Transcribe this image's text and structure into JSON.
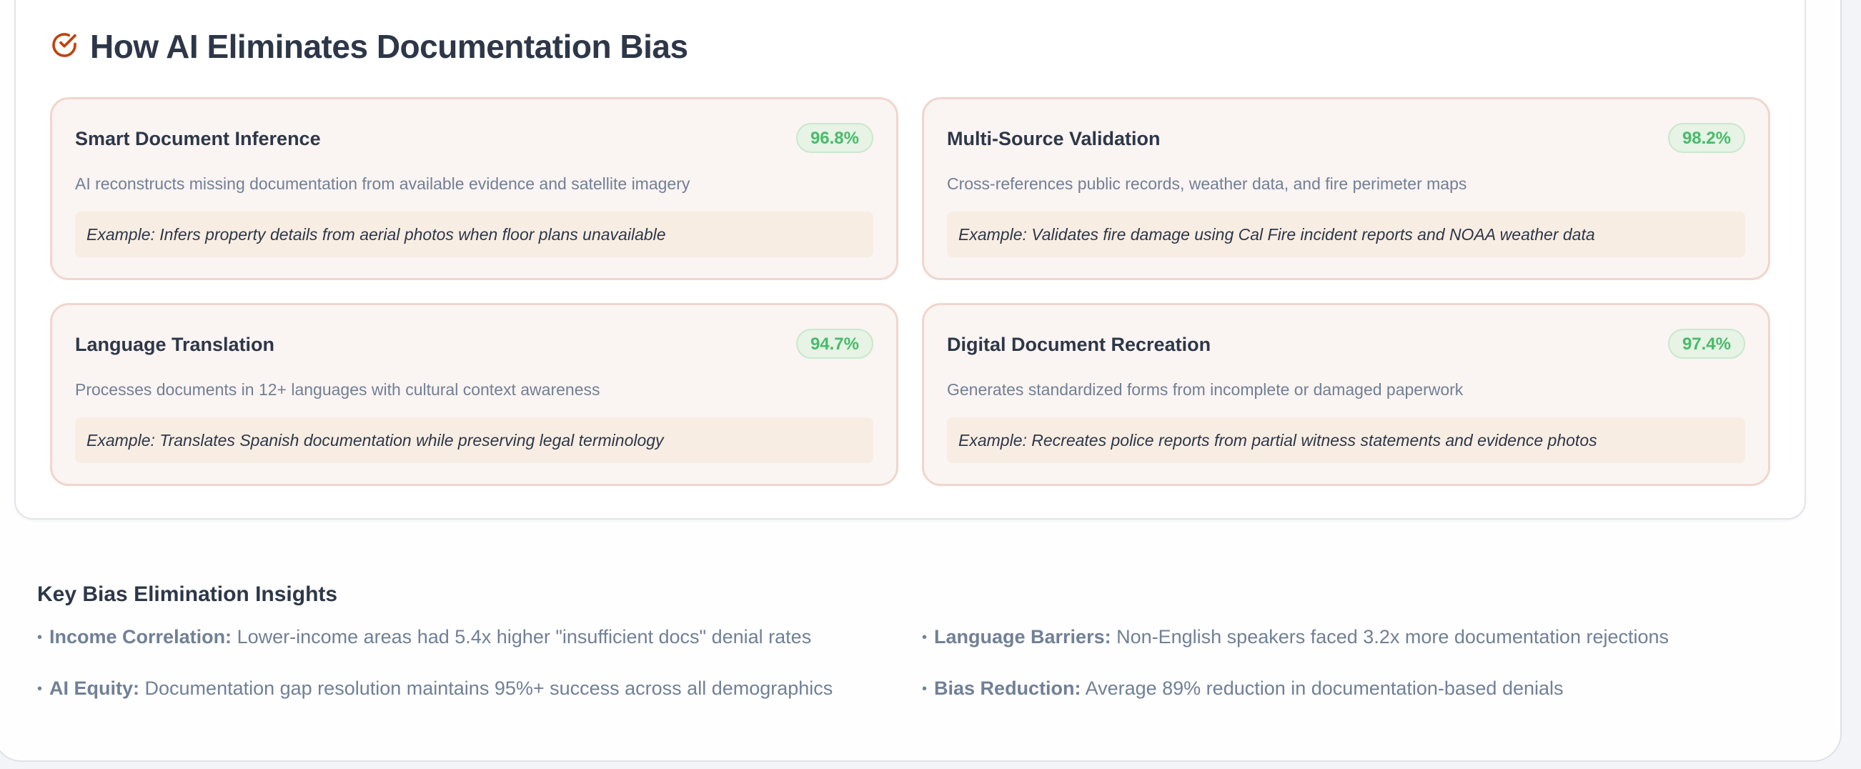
{
  "section": {
    "title": "How AI Eliminates Documentation Bias",
    "icon": "check-circle-icon",
    "accent_color": "#c2410c"
  },
  "cards": [
    {
      "title": "Smart Document Inference",
      "badge": "96.8%",
      "description": "AI reconstructs missing documentation from available evidence and satellite imagery",
      "example": "Example: Infers property details from aerial photos when floor plans unavailable"
    },
    {
      "title": "Multi-Source Validation",
      "badge": "98.2%",
      "description": "Cross-references public records, weather data, and fire perimeter maps",
      "example": "Example: Validates fire damage using Cal Fire incident reports and NOAA weather data"
    },
    {
      "title": "Language Translation",
      "badge": "94.7%",
      "description": "Processes documents in 12+ languages with cultural context awareness",
      "example": "Example: Translates Spanish documentation while preserving legal terminology"
    },
    {
      "title": "Digital Document Recreation",
      "badge": "97.4%",
      "description": "Generates standardized forms from incomplete or damaged paperwork",
      "example": "Example: Recreates police reports from partial witness statements and evidence photos"
    }
  ],
  "insights": {
    "title": "Key Bias Elimination Insights",
    "items": [
      {
        "label": "Income Correlation:",
        "text": "Lower-income areas had 5.4x higher \"insufficient docs\" denial rates"
      },
      {
        "label": "Language Barriers:",
        "text": "Non-English speakers faced 3.2x more documentation rejections"
      },
      {
        "label": "AI Equity:",
        "text": "Documentation gap resolution maintains 95%+ success across all demographics"
      },
      {
        "label": "Bias Reduction:",
        "text": "Average 89% reduction in documentation-based denials"
      }
    ]
  }
}
